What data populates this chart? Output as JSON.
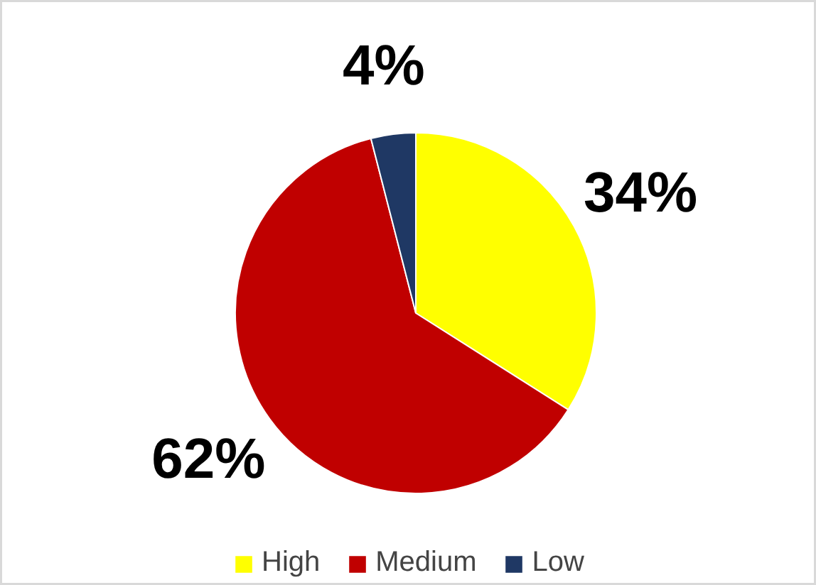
{
  "chart_data": {
    "type": "pie",
    "categories": [
      "High",
      "Medium",
      "Low"
    ],
    "values": [
      34,
      62,
      4
    ],
    "colors": [
      "#ffff00",
      "#c00000",
      "#1f3864"
    ],
    "value_labels": [
      "34%",
      "62%",
      "4%"
    ],
    "legend": "bottom"
  }
}
